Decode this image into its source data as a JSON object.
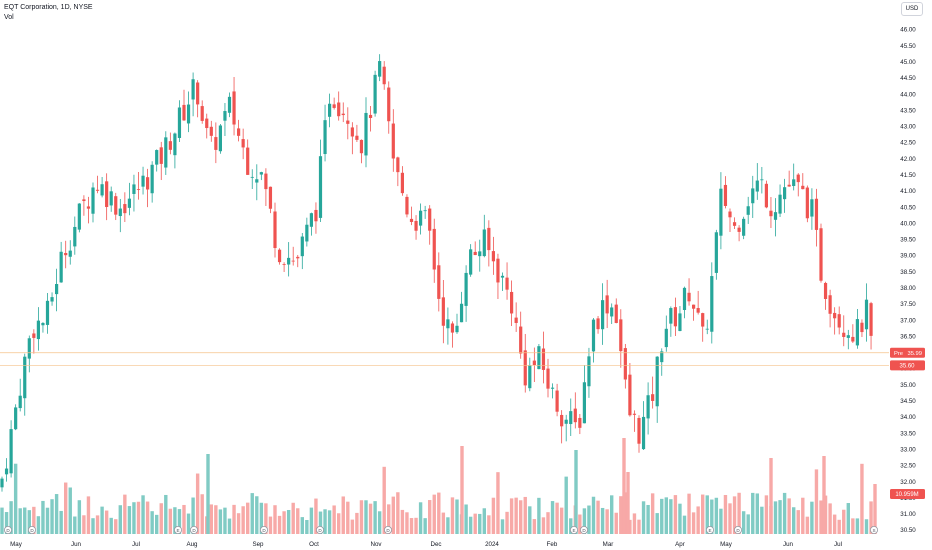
{
  "chart_data": {
    "type": "candlestick",
    "title": "EQT Corporation, 1D, NYSE",
    "volume_label": "Vol",
    "currency": "USD",
    "y_ticks": [
      "46.00",
      "45.50",
      "45.00",
      "44.50",
      "44.00",
      "43.50",
      "43.00",
      "42.50",
      "42.00",
      "41.50",
      "41.00",
      "40.50",
      "40.00",
      "39.50",
      "39.00",
      "38.50",
      "38.00",
      "37.50",
      "37.00",
      "36.50",
      "36.00",
      "35.50",
      "35.00",
      "34.50",
      "34.00",
      "33.50",
      "33.00",
      "32.50",
      "32.00",
      "31.50",
      "31.00",
      "30.50"
    ],
    "ylim": [
      30.35,
      46.35
    ],
    "x_ticks": [
      "May",
      "Jun",
      "Jul",
      "Aug",
      "Sep",
      "Oct",
      "Nov",
      "Dec",
      "2024",
      "Feb",
      "Mar",
      "Apr",
      "May",
      "Jun",
      "Jul"
    ],
    "pre_market": {
      "label": "Pre",
      "value": 35.99
    },
    "last_price": 35.6,
    "last_volume_label": "10.959M",
    "colors": {
      "up": "#26a69a",
      "down": "#ef5350",
      "up_vol": "#80cbc4",
      "down_vol": "#f7a9a7",
      "pre_line": "#f5c28a",
      "last_line": "#ef5350",
      "axis_text": "#131722"
    },
    "marker_icons": [
      "earnings-icon",
      "dividend-icon",
      "split-icon"
    ],
    "price_path": [
      {
        "d": 0,
        "p": 31.8
      },
      {
        "d": 10,
        "p": 33.3
      },
      {
        "d": 22,
        "p": 35.3
      },
      {
        "d": 32,
        "p": 36.8
      },
      {
        "d": 46,
        "p": 37.0
      },
      {
        "d": 62,
        "p": 39.0
      },
      {
        "d": 80,
        "p": 40.3
      },
      {
        "d": 96,
        "p": 41.3
      },
      {
        "d": 120,
        "p": 40.5
      },
      {
        "d": 142,
        "p": 41.2
      },
      {
        "d": 160,
        "p": 42.0
      },
      {
        "d": 176,
        "p": 43.0
      },
      {
        "d": 196,
        "p": 44.3
      },
      {
        "d": 210,
        "p": 42.2
      },
      {
        "d": 230,
        "p": 43.6
      },
      {
        "d": 246,
        "p": 42.0
      },
      {
        "d": 262,
        "p": 41.5
      },
      {
        "d": 278,
        "p": 39.2
      },
      {
        "d": 296,
        "p": 38.8
      },
      {
        "d": 316,
        "p": 40.5
      },
      {
        "d": 330,
        "p": 44.1
      },
      {
        "d": 348,
        "p": 43.4
      },
      {
        "d": 362,
        "p": 42.5
      },
      {
        "d": 380,
        "p": 44.8
      },
      {
        "d": 394,
        "p": 41.8
      },
      {
        "d": 410,
        "p": 40.2
      },
      {
        "d": 428,
        "p": 40.0
      },
      {
        "d": 440,
        "p": 37.5
      },
      {
        "d": 454,
        "p": 36.2
      },
      {
        "d": 466,
        "p": 38.8
      },
      {
        "d": 484,
        "p": 39.4
      },
      {
        "d": 500,
        "p": 38.4
      },
      {
        "d": 512,
        "p": 37.5
      },
      {
        "d": 524,
        "p": 35.3
      },
      {
        "d": 540,
        "p": 35.8
      },
      {
        "d": 552,
        "p": 34.7
      },
      {
        "d": 564,
        "p": 34.0
      },
      {
        "d": 578,
        "p": 33.6
      },
      {
        "d": 592,
        "p": 36.8
      },
      {
        "d": 606,
        "p": 37.6
      },
      {
        "d": 616,
        "p": 37.3
      },
      {
        "d": 628,
        "p": 34.2
      },
      {
        "d": 640,
        "p": 33.5
      },
      {
        "d": 652,
        "p": 34.6
      },
      {
        "d": 664,
        "p": 36.8
      },
      {
        "d": 678,
        "p": 37.2
      },
      {
        "d": 690,
        "p": 38.0
      },
      {
        "d": 704,
        "p": 36.2
      },
      {
        "d": 712,
        "p": 38.3
      },
      {
        "d": 722,
        "p": 41.0
      },
      {
        "d": 734,
        "p": 39.8
      },
      {
        "d": 748,
        "p": 40.8
      },
      {
        "d": 760,
        "p": 41.3
      },
      {
        "d": 772,
        "p": 40.5
      },
      {
        "d": 786,
        "p": 41.2
      },
      {
        "d": 800,
        "p": 41.0
      },
      {
        "d": 812,
        "p": 40.3
      },
      {
        "d": 822,
        "p": 38.3
      },
      {
        "d": 834,
        "p": 37.3
      },
      {
        "d": 846,
        "p": 36.8
      },
      {
        "d": 858,
        "p": 36.6
      },
      {
        "d": 866,
        "p": 37.3
      },
      {
        "d": 874,
        "p": 35.6
      }
    ],
    "markers": [
      {
        "d": 8,
        "icon": "dividend-icon"
      },
      {
        "d": 32,
        "icon": "dividend-icon"
      },
      {
        "d": 178,
        "icon": "earnings-icon"
      },
      {
        "d": 194,
        "icon": "dividend-icon"
      },
      {
        "d": 264,
        "icon": "dividend-icon"
      },
      {
        "d": 320,
        "icon": "dividend-icon"
      },
      {
        "d": 388,
        "icon": "dividend-icon"
      },
      {
        "d": 574,
        "icon": "earnings-icon"
      },
      {
        "d": 584,
        "icon": "dividend-icon"
      },
      {
        "d": 710,
        "icon": "earnings-icon"
      },
      {
        "d": 738,
        "icon": "dividend-icon"
      },
      {
        "d": 874,
        "icon": "split-icon"
      }
    ]
  }
}
